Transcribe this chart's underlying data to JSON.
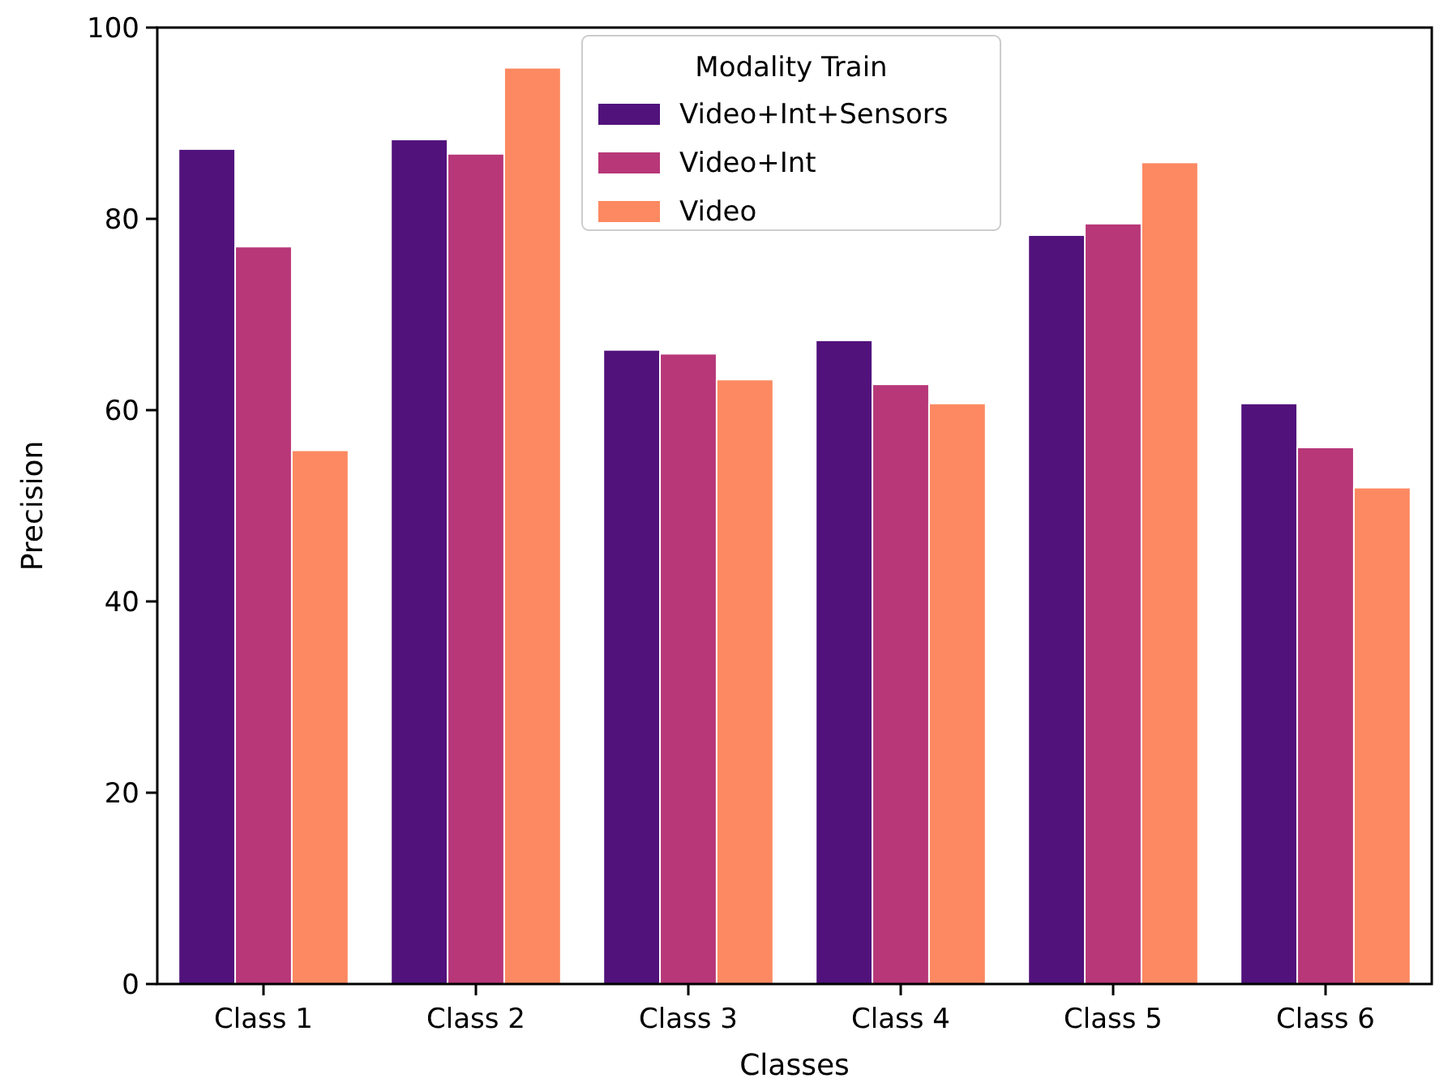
{
  "chart_data": {
    "type": "bar",
    "xlabel": "Classes",
    "ylabel": "Precision",
    "legend_title": "Modality Train",
    "legend": "top",
    "categories": [
      "Class 1",
      "Class 2",
      "Class 3",
      "Class 4",
      "Class 5",
      "Class 6"
    ],
    "series": [
      {
        "name": "Video+Int+Sensors",
        "color": "#51127c",
        "values": [
          87.3,
          88.3,
          66.3,
          67.3,
          78.3,
          60.7
        ]
      },
      {
        "name": "Video+Int",
        "color": "#b73779",
        "values": [
          77.1,
          86.8,
          65.9,
          62.7,
          79.5,
          56.1
        ]
      },
      {
        "name": "Video",
        "color": "#fc8961",
        "values": [
          55.8,
          95.8,
          63.2,
          60.7,
          85.9,
          51.9
        ]
      }
    ],
    "ylim": [
      0,
      100
    ],
    "yticks": [
      0,
      20,
      40,
      60,
      80,
      100
    ],
    "grid": false
  }
}
